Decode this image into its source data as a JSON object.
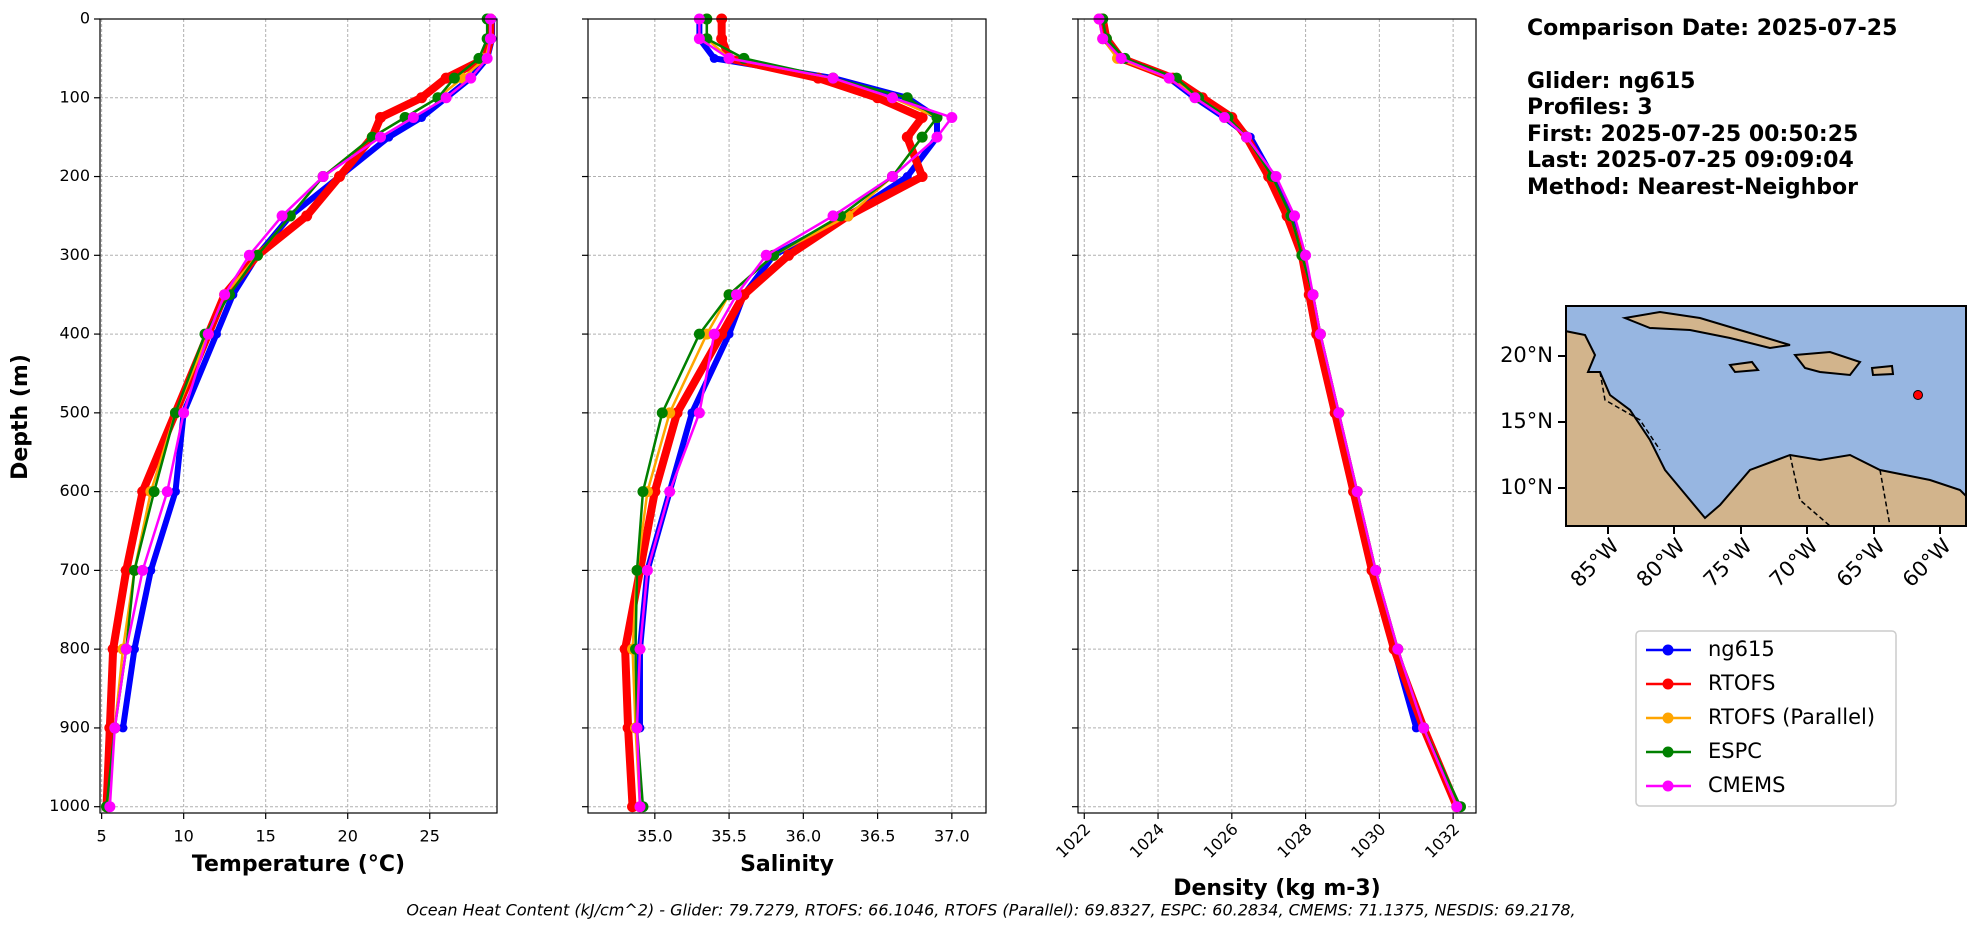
{
  "chart_data": [
    {
      "type": "line",
      "xlabel": "Temperature (°C)",
      "ylabel": "Depth (m)",
      "y": [
        0,
        25,
        50,
        75,
        100,
        125,
        150,
        200,
        250,
        300,
        350,
        400,
        500,
        600,
        700,
        800,
        900,
        1000
      ],
      "xlim": [
        4.9,
        29.1
      ],
      "xticks": [
        5,
        10,
        15,
        20,
        25
      ],
      "ylim": [
        1008,
        0
      ],
      "yticks": [
        0,
        100,
        200,
        300,
        400,
        500,
        600,
        700,
        800,
        900,
        1000
      ],
      "grid": true,
      "series": [
        {
          "name": "ng615",
          "color": "#0000ff",
          "values": [
            28.8,
            28.8,
            28.5,
            27.5,
            26,
            24.5,
            22.5,
            19.5,
            16.5,
            14.5,
            13,
            12,
            10,
            9.5,
            8,
            7,
            6.3,
            null
          ]
        },
        {
          "name": "RTOFS",
          "color": "#ff0000",
          "values": [
            28.7,
            28.7,
            28.4,
            26,
            24.5,
            22,
            21.5,
            19.5,
            17.5,
            14.5,
            12.5,
            11.5,
            9.5,
            7.5,
            6.5,
            5.7,
            5.5,
            5.3
          ]
        },
        {
          "name": "RTOFS (Parallel)",
          "color": "#ffa500",
          "values": [
            28.7,
            28.7,
            28.4,
            27,
            25.5,
            23.5,
            21.5,
            18.5,
            16.5,
            14.5,
            12.5,
            11.5,
            9.5,
            8,
            7,
            6.3,
            5.8,
            5.4
          ]
        },
        {
          "name": "ESPC",
          "color": "#008000",
          "values": [
            28.5,
            28.5,
            28,
            26.5,
            25.5,
            23.5,
            21.5,
            18.5,
            16.5,
            14.5,
            12.8,
            11.3,
            9.5,
            8.2,
            7,
            6.5,
            5.8,
            5.3
          ]
        },
        {
          "name": "CMEMS",
          "color": "#ff00ff",
          "values": [
            28.7,
            28.7,
            28.5,
            27.5,
            26,
            24,
            22,
            18.5,
            16,
            14,
            12.5,
            11.5,
            10,
            9,
            7.5,
            6.5,
            5.8,
            5.5
          ]
        }
      ]
    },
    {
      "type": "line",
      "xlabel": "Salinity",
      "y": [
        0,
        25,
        50,
        75,
        100,
        125,
        150,
        200,
        250,
        300,
        350,
        400,
        500,
        600,
        700,
        800,
        900,
        1000
      ],
      "xlim": [
        34.55,
        37.23
      ],
      "xticks": [
        {
          "value": 35,
          "label": "35.0"
        },
        35.5,
        {
          "value": 36,
          "label": "36.0"
        },
        36.5,
        {
          "value": 37,
          "label": "37.0"
        }
      ],
      "ylim": [
        1008,
        0
      ],
      "yticks": [
        0,
        100,
        200,
        300,
        400,
        500,
        600,
        700,
        800,
        900,
        1000
      ],
      "grid": true,
      "series": [
        {
          "name": "ng615",
          "color": "#0000ff",
          "values": [
            35.3,
            35.3,
            35.4,
            36.2,
            36.7,
            36.9,
            36.9,
            36.7,
            36.3,
            35.8,
            35.6,
            35.5,
            35.25,
            35.1,
            34.95,
            34.9,
            34.9,
            null
          ]
        },
        {
          "name": "RTOFS",
          "color": "#ff0000",
          "values": [
            35.45,
            35.45,
            35.5,
            36.1,
            36.5,
            36.8,
            36.7,
            36.8,
            36.3,
            35.9,
            35.6,
            35.45,
            35.15,
            35,
            34.9,
            34.8,
            34.82,
            34.85
          ]
        },
        {
          "name": "RTOFS (Parallel)",
          "color": "#ffa500",
          "values": [
            35.35,
            35.35,
            35.5,
            36.2,
            36.6,
            36.9,
            36.8,
            36.6,
            36.3,
            35.8,
            35.5,
            35.35,
            35.1,
            34.95,
            34.88,
            34.85,
            34.87,
            34.9
          ]
        },
        {
          "name": "ESPC",
          "color": "#008000",
          "values": [
            35.35,
            35.35,
            35.6,
            36.2,
            36.7,
            36.9,
            36.8,
            36.6,
            36.25,
            35.8,
            35.5,
            35.3,
            35.05,
            34.92,
            34.88,
            34.87,
            34.88,
            34.92
          ]
        },
        {
          "name": "CMEMS",
          "color": "#ff00ff",
          "values": [
            35.3,
            35.3,
            35.5,
            36.2,
            36.6,
            37,
            36.9,
            36.6,
            36.2,
            35.75,
            35.55,
            35.4,
            35.3,
            35.1,
            34.95,
            34.9,
            34.88,
            34.9
          ]
        }
      ]
    },
    {
      "type": "line",
      "xlabel": "Density (kg m-3)",
      "y": [
        0,
        25,
        50,
        75,
        100,
        125,
        150,
        200,
        250,
        300,
        350,
        400,
        500,
        600,
        700,
        800,
        900,
        1000
      ],
      "xlim": [
        1021.83,
        1032.62
      ],
      "xticks": [
        1022,
        1024,
        1026,
        1028,
        1030,
        1032
      ],
      "ylim": [
        1008,
        0
      ],
      "yticks": [
        0,
        100,
        200,
        300,
        400,
        500,
        600,
        700,
        800,
        900,
        1000
      ],
      "grid": true,
      "series": [
        {
          "name": "ng615",
          "color": "#0000ff",
          "values": [
            1022.5,
            1022.6,
            1023,
            1024.3,
            1025,
            1025.8,
            1026.5,
            1027.1,
            1027.6,
            1027.9,
            1028.1,
            1028.3,
            1028.8,
            1029.3,
            1029.8,
            1030.4,
            1031,
            null
          ]
        },
        {
          "name": "RTOFS",
          "color": "#ff0000",
          "values": [
            1022.5,
            1022.6,
            1023,
            1024.4,
            1025.2,
            1026,
            1026.4,
            1027,
            1027.5,
            1027.9,
            1028.1,
            1028.3,
            1028.8,
            1029.3,
            1029.8,
            1030.4,
            1031.2,
            1032.1
          ]
        },
        {
          "name": "RTOFS (Parallel)",
          "color": "#ffa500",
          "values": [
            1022.4,
            1022.5,
            1022.9,
            1024.3,
            1025.1,
            1025.9,
            1026.4,
            1027.1,
            1027.6,
            1027.9,
            1028.2,
            1028.4,
            1028.9,
            1029.4,
            1029.9,
            1030.5,
            1031.2,
            1032.1
          ]
        },
        {
          "name": "ESPC",
          "color": "#008000",
          "values": [
            1022.5,
            1022.6,
            1023.1,
            1024.5,
            1025.1,
            1025.9,
            1026.4,
            1027.1,
            1027.6,
            1027.9,
            1028.2,
            1028.4,
            1028.9,
            1029.4,
            1029.9,
            1030.5,
            1031.2,
            1032.2
          ]
        },
        {
          "name": "CMEMS",
          "color": "#ff00ff",
          "values": [
            1022.4,
            1022.5,
            1023,
            1024.3,
            1025,
            1025.8,
            1026.4,
            1027.2,
            1027.7,
            1028,
            1028.2,
            1028.4,
            1028.9,
            1029.4,
            1029.9,
            1030.5,
            1031.2,
            1032.1
          ]
        }
      ]
    }
  ],
  "info": [
    "Comparison Date: 2025-07-25",
    "Glider: ng615",
    "Profiles: 3",
    "First: 2025-07-25 00:50:25",
    "Last: 2025-07-25 09:09:04",
    "Method: Nearest-Neighbor"
  ],
  "map": {
    "lat_labels": [
      "20°N",
      "15°N",
      "10°N"
    ],
    "lon_labels": [
      "85°W",
      "80°W",
      "75°W",
      "70°W",
      "65°W",
      "60°W"
    ]
  },
  "footer": "Ocean Heat Content (kJ/cm^2) - Glider: 79.7279,  RTOFS: 66.1046,  RTOFS (Parallel): 69.8327,  ESPC: 60.2834,  CMEMS: 71.1375,  NESDIS: 69.2178,"
}
